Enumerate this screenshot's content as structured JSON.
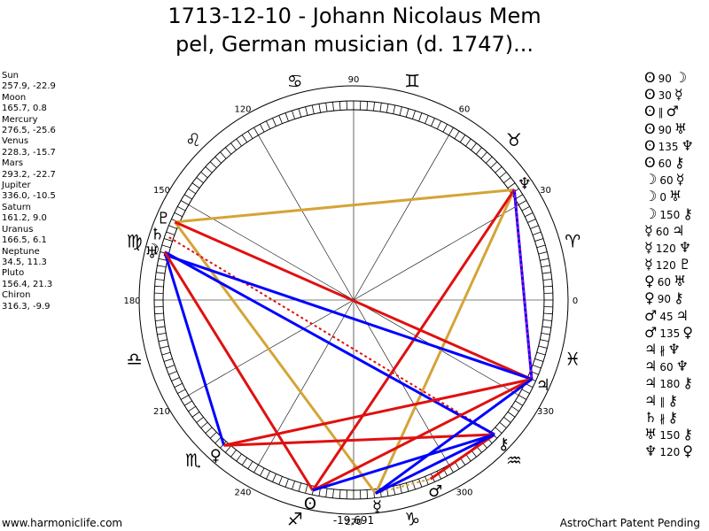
{
  "title_line1": "1713-12-10 - Johann Nicolaus Mem",
  "title_line2": "pel, German musician (d. 1747)...",
  "footer_left": "www.harmoniclife.com",
  "footer_right": "AstroChart Patent Pending",
  "planets": [
    {
      "name": "Sun",
      "coords": "257.9, -22.9",
      "symbol": "ʘ"
    },
    {
      "name": "Moon",
      "coords": "165.7, 0.8",
      "symbol": "☽"
    },
    {
      "name": "Mercury",
      "coords": "276.5, -25.6",
      "symbol": "☿"
    },
    {
      "name": "Venus",
      "coords": "228.3, -15.7",
      "symbol": "♀"
    },
    {
      "name": "Mars",
      "coords": "293.2, -22.7",
      "symbol": "♂"
    },
    {
      "name": "Jupiter",
      "coords": "336.0, -10.5",
      "symbol": "♃"
    },
    {
      "name": "Saturn",
      "coords": "161.2, 9.0",
      "symbol": "♄"
    },
    {
      "name": "Uranus",
      "coords": "166.5, 6.1",
      "symbol": "♅"
    },
    {
      "name": "Neptune",
      "coords": "34.5, 11.3",
      "symbol": "♆"
    },
    {
      "name": "Pluto",
      "coords": "156.4, 21.3",
      "symbol": "♇"
    },
    {
      "name": "Chiron",
      "coords": "316.3, -9.9",
      "symbol": "⚷"
    }
  ],
  "aspects": [
    [
      "ʘ",
      "90",
      "☽"
    ],
    [
      "ʘ",
      "30",
      "☿"
    ],
    [
      "ʘ",
      "∥",
      "♂"
    ],
    [
      "ʘ",
      "90",
      "♅"
    ],
    [
      "ʘ",
      "135",
      "♆"
    ],
    [
      "ʘ",
      "60",
      "⚷"
    ],
    [
      "☽",
      "60",
      "☿"
    ],
    [
      "☽",
      "0",
      "♅"
    ],
    [
      "☽",
      "150",
      "⚷"
    ],
    [
      "☿",
      "60",
      "♃"
    ],
    [
      "☿",
      "120",
      "♆"
    ],
    [
      "☿",
      "120",
      "♇"
    ],
    [
      "♀",
      "60",
      "♅"
    ],
    [
      "♀",
      "90",
      "⚷"
    ],
    [
      "♂",
      "45",
      "♃"
    ],
    [
      "♂",
      "135",
      "♀"
    ],
    [
      "♃",
      "∦",
      "♆"
    ],
    [
      "♃",
      "60",
      "♆"
    ],
    [
      "♃",
      "180",
      "⚷"
    ],
    [
      "♃",
      "∥",
      "⚷"
    ],
    [
      "♄",
      "∦",
      "⚷"
    ],
    [
      "♅",
      "150",
      "⚷"
    ],
    [
      "♆",
      "120",
      "♀"
    ]
  ],
  "chart_data": {
    "type": "radial",
    "title": "1713-12-10 - Johann Nicolaus Mempel, German musician (d. 1747)...",
    "degree_labels": [
      "0",
      "30",
      "60",
      "90",
      "120",
      "150",
      "180",
      "210",
      "240",
      "270",
      "300",
      "330"
    ],
    "center_value": "-19,691",
    "zodiac_signs": [
      "♈",
      "♉",
      "♊",
      "♋",
      "♌",
      "♍",
      "♎",
      "♏",
      "♐",
      "♑",
      "♒",
      "♓"
    ],
    "planet_positions": [
      {
        "name": "Sun",
        "symbol": "ʘ",
        "longitude": 257.9
      },
      {
        "name": "Moon",
        "symbol": "☽",
        "longitude": 165.7
      },
      {
        "name": "Mercury",
        "symbol": "☿",
        "longitude": 276.5
      },
      {
        "name": "Venus",
        "symbol": "♀",
        "longitude": 228.3
      },
      {
        "name": "Mars",
        "symbol": "♂",
        "longitude": 293.2
      },
      {
        "name": "Jupiter",
        "symbol": "♃",
        "longitude": 336.0
      },
      {
        "name": "Saturn",
        "symbol": "♄",
        "longitude": 161.2
      },
      {
        "name": "Uranus",
        "symbol": "♅",
        "longitude": 166.5
      },
      {
        "name": "Neptune",
        "symbol": "♆",
        "longitude": 34.5
      },
      {
        "name": "Pluto",
        "symbol": "♇",
        "longitude": 156.4
      },
      {
        "name": "Chiron",
        "symbol": "⚷",
        "longitude": 316.3
      }
    ],
    "aspect_lines": [
      {
        "from": "Neptune",
        "to": "Pluto",
        "color": "#d4a437",
        "style": "solid"
      },
      {
        "from": "Neptune",
        "to": "Mercury",
        "color": "#d4a437",
        "style": "solid"
      },
      {
        "from": "Pluto",
        "to": "Mercury",
        "color": "#d4a437",
        "style": "solid"
      },
      {
        "from": "Mercury",
        "to": "Mars",
        "color": "#d4a437",
        "style": "dotted"
      },
      {
        "from": "Neptune",
        "to": "Sun",
        "color": "#e01010",
        "style": "solid"
      },
      {
        "from": "Neptune",
        "to": "Jupiter",
        "color": "#0000ff",
        "style": "solid"
      },
      {
        "from": "Neptune",
        "to": "Jupiter",
        "color": "#c000c0",
        "style": "dotted"
      },
      {
        "from": "Pluto",
        "to": "Jupiter",
        "color": "#e01010",
        "style": "solid"
      },
      {
        "from": "Saturn",
        "to": "Chiron",
        "color": "#e01010",
        "style": "dotted"
      },
      {
        "from": "Uranus",
        "to": "Jupiter",
        "color": "#0000ff",
        "style": "solid"
      },
      {
        "from": "Moon",
        "to": "Chiron",
        "color": "#0000ff",
        "style": "solid"
      },
      {
        "from": "Moon",
        "to": "Venus",
        "color": "#0000ff",
        "style": "solid"
      },
      {
        "from": "Moon",
        "to": "Sun",
        "color": "#e01010",
        "style": "solid"
      },
      {
        "from": "Venus",
        "to": "Chiron",
        "color": "#e01010",
        "style": "solid"
      },
      {
        "from": "Venus",
        "to": "Jupiter",
        "color": "#e01010",
        "style": "solid"
      },
      {
        "from": "Sun",
        "to": "Jupiter",
        "color": "#e01010",
        "style": "solid"
      },
      {
        "from": "Sun",
        "to": "Chiron",
        "color": "#0000ff",
        "style": "solid"
      },
      {
        "from": "Mars",
        "to": "Chiron",
        "color": "#e01010",
        "style": "solid"
      },
      {
        "from": "Mercury",
        "to": "Chiron",
        "color": "#0000ff",
        "style": "solid"
      },
      {
        "from": "Mercury",
        "to": "Jupiter",
        "color": "#0000ff",
        "style": "solid"
      }
    ],
    "colors": {
      "trine_sextile": "#d4a437",
      "hard": "#e01010",
      "soft": "#0000ff",
      "minor": "#c000c0"
    }
  }
}
